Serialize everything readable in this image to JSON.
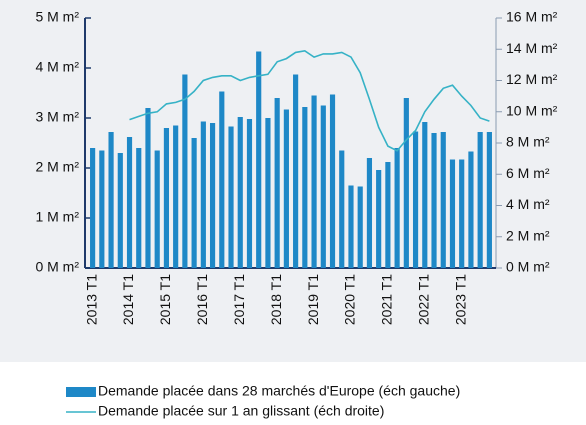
{
  "chart_data": {
    "type": "bar_line",
    "categories": [
      "2013 T1",
      null,
      null,
      null,
      "2014 T1",
      null,
      null,
      null,
      "2015 T1",
      null,
      null,
      null,
      "2016 T1",
      null,
      null,
      null,
      "2017 T1",
      null,
      null,
      null,
      "2018 T1",
      null,
      null,
      null,
      "2019 T1",
      null,
      null,
      null,
      "2020 T1",
      null,
      null,
      null,
      "2021 T1",
      null,
      null,
      null,
      "2022 T1",
      null,
      null,
      null,
      "2023 T1",
      null,
      null,
      null
    ],
    "series": [
      {
        "name": "Demande placée dans 28 marchés d'Europe (éch gauche)",
        "color": "#1e88c7",
        "kind": "bar",
        "axis": "y",
        "values": [
          2.4,
          2.35,
          2.72,
          2.3,
          2.62,
          2.4,
          3.2,
          2.35,
          2.8,
          2.85,
          3.87,
          2.6,
          2.93,
          2.9,
          3.53,
          2.83,
          3.02,
          2.98,
          4.33,
          3.0,
          3.4,
          3.17,
          3.87,
          3.22,
          3.45,
          3.25,
          3.47,
          2.35,
          1.65,
          1.63,
          2.2,
          1.96,
          2.12,
          2.4,
          3.4,
          2.73,
          2.92,
          2.7,
          2.72,
          2.17,
          2.17,
          2.33,
          2.72,
          2.72
        ]
      },
      {
        "name": "Demande placée sur 1 an glissant (éch droite)",
        "color": "#36b2c6",
        "kind": "line",
        "axis": "y2",
        "values": [
          null,
          null,
          null,
          null,
          9.5,
          9.7,
          9.9,
          10.0,
          10.5,
          10.6,
          10.8,
          11.3,
          12.0,
          12.2,
          12.3,
          12.3,
          12.0,
          12.2,
          12.3,
          12.4,
          13.2,
          13.4,
          13.8,
          13.9,
          13.5,
          13.7,
          13.7,
          13.8,
          13.5,
          12.5,
          10.8,
          9.0,
          7.8,
          7.5,
          8.2,
          8.8,
          10.0,
          10.8,
          11.5,
          11.7,
          11.0,
          10.4,
          9.6,
          9.4
        ]
      }
    ],
    "ylim": [
      0,
      5
    ],
    "yticks": [
      {
        "value": 0,
        "label": "0 M m²"
      },
      {
        "value": 1,
        "label": "1 M m²"
      },
      {
        "value": 2,
        "label": "2 M m²"
      },
      {
        "value": 3,
        "label": "3 M m²"
      },
      {
        "value": 4,
        "label": "4 M m²"
      },
      {
        "value": 5,
        "label": "5 M m²"
      }
    ],
    "y2lim": [
      0,
      16
    ],
    "y2ticks": [
      {
        "value": 0,
        "label": "0 M m²"
      },
      {
        "value": 2,
        "label": "2 M m²"
      },
      {
        "value": 4,
        "label": "4 M m²"
      },
      {
        "value": 6,
        "label": "6 M m²"
      },
      {
        "value": 8,
        "label": "8 M m²"
      },
      {
        "value": 10,
        "label": "10 M m²"
      },
      {
        "value": 12,
        "label": "12 M m²"
      },
      {
        "value": 14,
        "label": "14 M m²"
      },
      {
        "value": 16,
        "label": "16 M m²"
      }
    ],
    "legend": "bottom"
  }
}
